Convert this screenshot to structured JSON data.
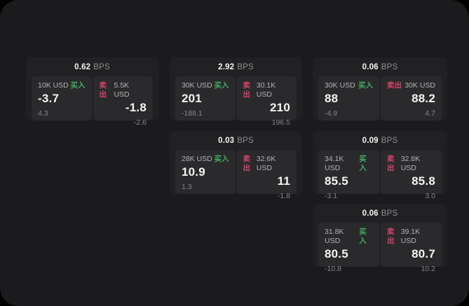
{
  "page": {
    "background": "#000000",
    "surface_color": "#1b1b1d"
  },
  "labels": {
    "unit": "BPS",
    "buy": "买入",
    "sell": "卖出"
  },
  "colors": {
    "buy": "#3fae63",
    "sell": "#d8436a",
    "card": "#212123",
    "panel": "#2a2a2c"
  },
  "cards": [
    {
      "bps": "0.62",
      "buy": {
        "amount": "10K USD",
        "main": "-3.7",
        "sub": "4.3"
      },
      "sell": {
        "amount": "5.5K USD",
        "main": "-1.8",
        "sub": "-2.6"
      }
    },
    {
      "bps": "2.92",
      "buy": {
        "amount": "30K USD",
        "main": "201",
        "sub": "-188.1"
      },
      "sell": {
        "amount": "30.1K USD",
        "main": "210",
        "sub": "196.5"
      }
    },
    {
      "bps": "0.06",
      "buy": {
        "amount": "30K USD",
        "main": "88",
        "sub": "-4.9"
      },
      "sell": {
        "amount": "30K USD",
        "main": "88.2",
        "sub": "4.7"
      }
    },
    {
      "bps": "0.03",
      "buy": {
        "amount": "28K USD",
        "main": "10.9",
        "sub": "1.3"
      },
      "sell": {
        "amount": "32.6K USD",
        "main": "11",
        "sub": "-1.8"
      }
    },
    {
      "bps": "0.09",
      "buy": {
        "amount": "34.1K USD",
        "main": "85.5",
        "sub": "-3.1"
      },
      "sell": {
        "amount": "32.8K USD",
        "main": "85.8",
        "sub": "3.0"
      }
    },
    {
      "bps": "0.06",
      "buy": {
        "amount": "31.8K USD",
        "main": "80.5",
        "sub": "-10.8"
      },
      "sell": {
        "amount": "39.1K USD",
        "main": "80.7",
        "sub": "10.2"
      }
    }
  ]
}
